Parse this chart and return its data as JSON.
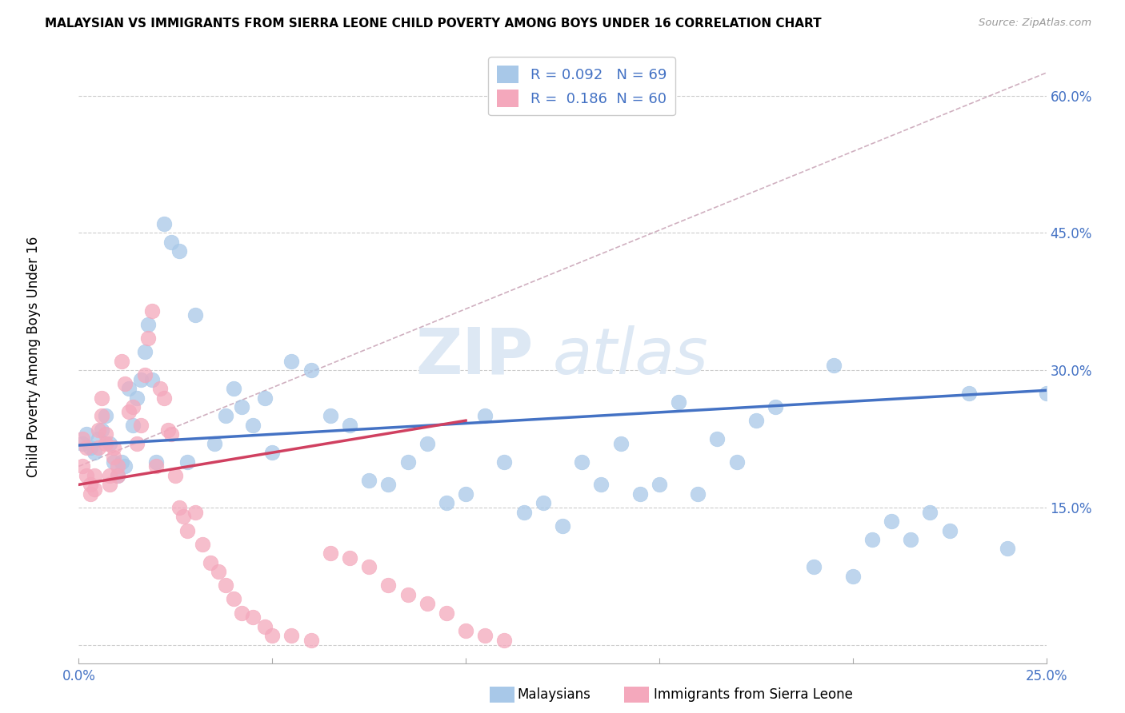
{
  "title": "MALAYSIAN VS IMMIGRANTS FROM SIERRA LEONE CHILD POVERTY AMONG BOYS UNDER 16 CORRELATION CHART",
  "source": "Source: ZipAtlas.com",
  "ylabel": "Child Poverty Among Boys Under 16",
  "xlim": [
    0.0,
    0.25
  ],
  "ylim": [
    -0.02,
    0.65
  ],
  "R_malaysian": 0.092,
  "N_malaysian": 69,
  "R_sierraleone": 0.186,
  "N_sierraleone": 60,
  "color_malaysian": "#a8c8e8",
  "color_sierraleone": "#f4a8bc",
  "color_text_blue": "#4472c4",
  "color_line_malaysian": "#4472c4",
  "color_line_sierraleone": "#d04060",
  "color_dashed_line": "#d0b0c0",
  "watermark_zip": "ZIP",
  "watermark_atlas": "atlas",
  "background_color": "#ffffff",
  "grid_color": "#cccccc",
  "mal_line_x0": 0.0,
  "mal_line_y0": 0.218,
  "mal_line_x1": 0.25,
  "mal_line_y1": 0.278,
  "sl_line_x0": 0.0,
  "sl_line_y0": 0.175,
  "sl_line_x1": 0.1,
  "sl_line_y1": 0.245,
  "dash_line_x0": 0.0,
  "dash_line_y0": 0.195,
  "dash_line_x1": 0.25,
  "dash_line_y1": 0.625,
  "malaysian_x": [
    0.001,
    0.002,
    0.003,
    0.004,
    0.005,
    0.006,
    0.007,
    0.008,
    0.009,
    0.01,
    0.011,
    0.012,
    0.013,
    0.014,
    0.015,
    0.016,
    0.017,
    0.018,
    0.019,
    0.02,
    0.022,
    0.024,
    0.026,
    0.028,
    0.03,
    0.035,
    0.038,
    0.04,
    0.042,
    0.045,
    0.048,
    0.05,
    0.055,
    0.06,
    0.065,
    0.07,
    0.075,
    0.08,
    0.085,
    0.09,
    0.095,
    0.1,
    0.105,
    0.11,
    0.115,
    0.12,
    0.125,
    0.13,
    0.135,
    0.14,
    0.145,
    0.15,
    0.155,
    0.16,
    0.165,
    0.17,
    0.175,
    0.18,
    0.19,
    0.195,
    0.2,
    0.205,
    0.21,
    0.215,
    0.22,
    0.225,
    0.23,
    0.24,
    0.25
  ],
  "malaysian_y": [
    0.22,
    0.23,
    0.215,
    0.21,
    0.225,
    0.235,
    0.25,
    0.22,
    0.2,
    0.185,
    0.2,
    0.195,
    0.28,
    0.24,
    0.27,
    0.29,
    0.32,
    0.35,
    0.29,
    0.2,
    0.46,
    0.44,
    0.43,
    0.2,
    0.36,
    0.22,
    0.25,
    0.28,
    0.26,
    0.24,
    0.27,
    0.21,
    0.31,
    0.3,
    0.25,
    0.24,
    0.18,
    0.175,
    0.2,
    0.22,
    0.155,
    0.165,
    0.25,
    0.2,
    0.145,
    0.155,
    0.13,
    0.2,
    0.175,
    0.22,
    0.165,
    0.175,
    0.265,
    0.165,
    0.225,
    0.2,
    0.245,
    0.26,
    0.085,
    0.305,
    0.075,
    0.115,
    0.135,
    0.115,
    0.145,
    0.125,
    0.275,
    0.105,
    0.275
  ],
  "sierraleone_x": [
    0.001,
    0.001,
    0.002,
    0.002,
    0.003,
    0.003,
    0.004,
    0.004,
    0.005,
    0.005,
    0.006,
    0.006,
    0.007,
    0.007,
    0.008,
    0.008,
    0.009,
    0.009,
    0.01,
    0.01,
    0.011,
    0.012,
    0.013,
    0.014,
    0.015,
    0.016,
    0.017,
    0.018,
    0.019,
    0.02,
    0.021,
    0.022,
    0.023,
    0.024,
    0.025,
    0.026,
    0.027,
    0.028,
    0.03,
    0.032,
    0.034,
    0.036,
    0.038,
    0.04,
    0.042,
    0.045,
    0.048,
    0.05,
    0.055,
    0.06,
    0.065,
    0.07,
    0.075,
    0.08,
    0.085,
    0.09,
    0.095,
    0.1,
    0.105,
    0.11
  ],
  "sierraleone_y": [
    0.225,
    0.195,
    0.215,
    0.185,
    0.175,
    0.165,
    0.185,
    0.17,
    0.235,
    0.215,
    0.25,
    0.27,
    0.23,
    0.22,
    0.185,
    0.175,
    0.215,
    0.205,
    0.195,
    0.185,
    0.31,
    0.285,
    0.255,
    0.26,
    0.22,
    0.24,
    0.295,
    0.335,
    0.365,
    0.195,
    0.28,
    0.27,
    0.235,
    0.23,
    0.185,
    0.15,
    0.14,
    0.125,
    0.145,
    0.11,
    0.09,
    0.08,
    0.065,
    0.05,
    0.035,
    0.03,
    0.02,
    0.01,
    0.01,
    0.005,
    0.1,
    0.095,
    0.085,
    0.065,
    0.055,
    0.045,
    0.035,
    0.015,
    0.01,
    0.005
  ]
}
